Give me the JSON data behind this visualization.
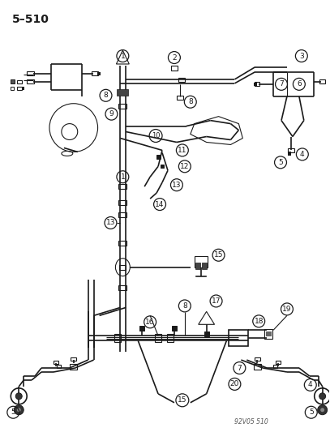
{
  "title": "5–510",
  "watermark": "92V05 510",
  "bg_color": "#ffffff",
  "lc": "#1a1a1a",
  "fig_width": 4.07,
  "fig_height": 5.33,
  "dpi": 100
}
